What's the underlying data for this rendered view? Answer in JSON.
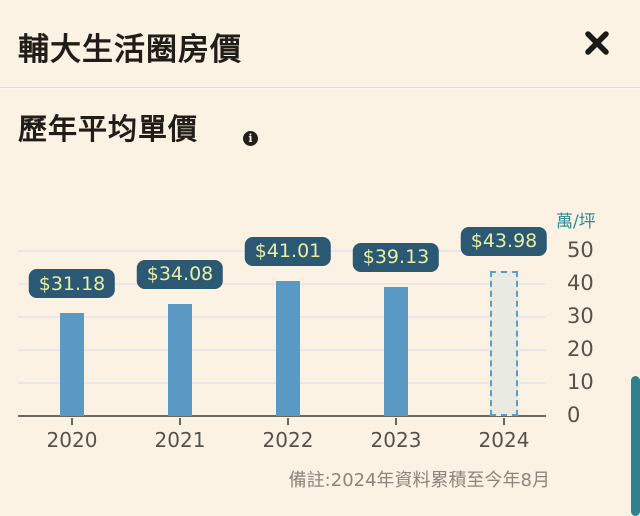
{
  "header": {
    "title": "輔大生活圈房價"
  },
  "icons": {
    "info": "i",
    "close": "close-x"
  },
  "section": {
    "title": "歷年平均單價"
  },
  "chart_data": {
    "type": "bar",
    "title": "歷年平均單價",
    "unit_label": "萬/坪",
    "categories": [
      "2020",
      "2021",
      "2022",
      "2023",
      "2024"
    ],
    "values": [
      31.18,
      34.08,
      41.01,
      39.13,
      43.98
    ],
    "value_labels": [
      "$31.18",
      "$34.08",
      "$41.01",
      "$39.13",
      "$43.98"
    ],
    "provisional": [
      false,
      false,
      false,
      false,
      true
    ],
    "y_ticks": [
      0,
      10,
      20,
      30,
      40,
      50
    ],
    "ylim": [
      0,
      50
    ],
    "grid": true,
    "legend": "none",
    "y_axis_side": "right",
    "colors": {
      "bar": "#5b99c5",
      "provisional_fill": "#e9eae2",
      "provisional_border": "#5e9cc4",
      "value_label_bg": "#2b5872",
      "value_label_text": "#e9eda6",
      "axis": "#6b675f",
      "gridline": "#ece6ea",
      "unit_text": "#2d8c96",
      "tick_text": "#56524a",
      "background": "#fbf2e3",
      "scrollbar": "#2f818d"
    },
    "footnote": "備註:2024年資料累積至今年8月"
  }
}
